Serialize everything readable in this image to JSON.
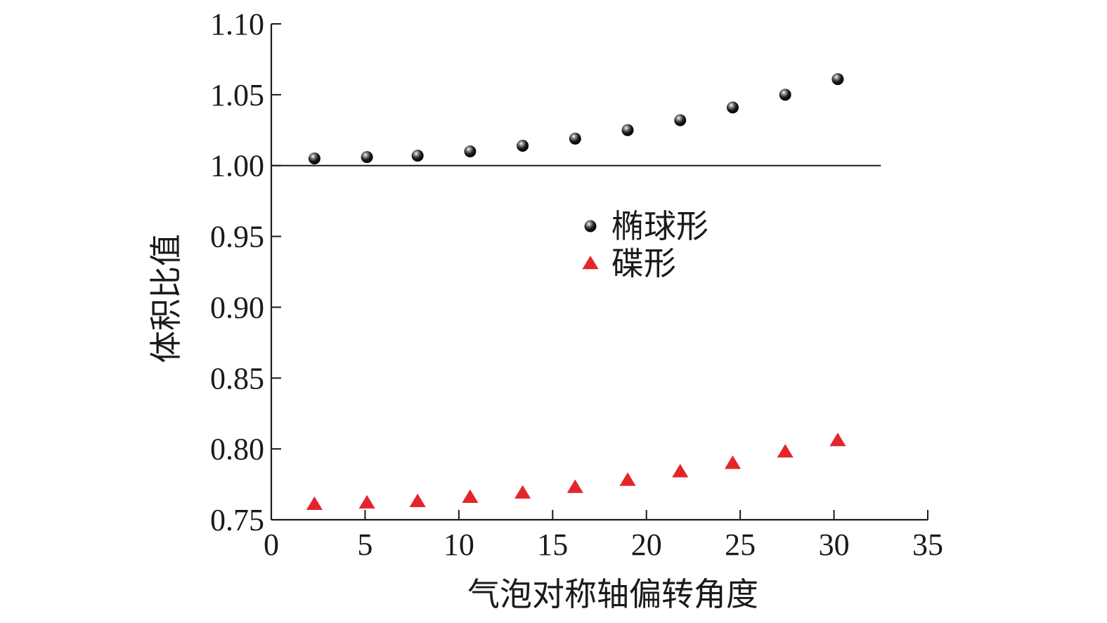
{
  "chart_data": {
    "type": "scatter",
    "title": "",
    "xlabel": "气泡对称轴偏转角度",
    "ylabel": "体积比值",
    "xlim": [
      0,
      35
    ],
    "ylim": [
      0.75,
      1.1
    ],
    "xticks": [
      0,
      5,
      10,
      15,
      20,
      25,
      30,
      35
    ],
    "yticks": [
      0.75,
      0.8,
      0.85,
      0.9,
      0.95,
      1.0,
      1.05,
      1.1
    ],
    "xtick_labels": [
      "0",
      "5",
      "10",
      "15",
      "20",
      "25",
      "30",
      "35"
    ],
    "ytick_labels": [
      "0.75",
      "0.80",
      "0.85",
      "0.90",
      "0.95",
      "1.00",
      "1.05",
      "1.10"
    ],
    "grid": false,
    "legend_position": "center-right",
    "reference_line": {
      "y": 1.0,
      "x_range": [
        0,
        32.5
      ]
    },
    "series": [
      {
        "name": "椭球形",
        "marker": "sphere",
        "color": "#111111",
        "x": [
          2.3,
          5.1,
          7.8,
          10.6,
          13.4,
          16.2,
          19.0,
          21.8,
          24.6,
          27.4,
          30.2
        ],
        "y": [
          1.005,
          1.006,
          1.007,
          1.01,
          1.014,
          1.019,
          1.025,
          1.032,
          1.041,
          1.05,
          1.061
        ]
      },
      {
        "name": "碟形",
        "marker": "triangle",
        "color": "#e3262b",
        "x": [
          2.3,
          5.1,
          7.8,
          10.6,
          13.4,
          16.2,
          19.0,
          21.8,
          24.6,
          27.4,
          30.2
        ],
        "y": [
          0.761,
          0.762,
          0.763,
          0.766,
          0.769,
          0.773,
          0.778,
          0.784,
          0.79,
          0.798,
          0.806
        ]
      }
    ]
  }
}
